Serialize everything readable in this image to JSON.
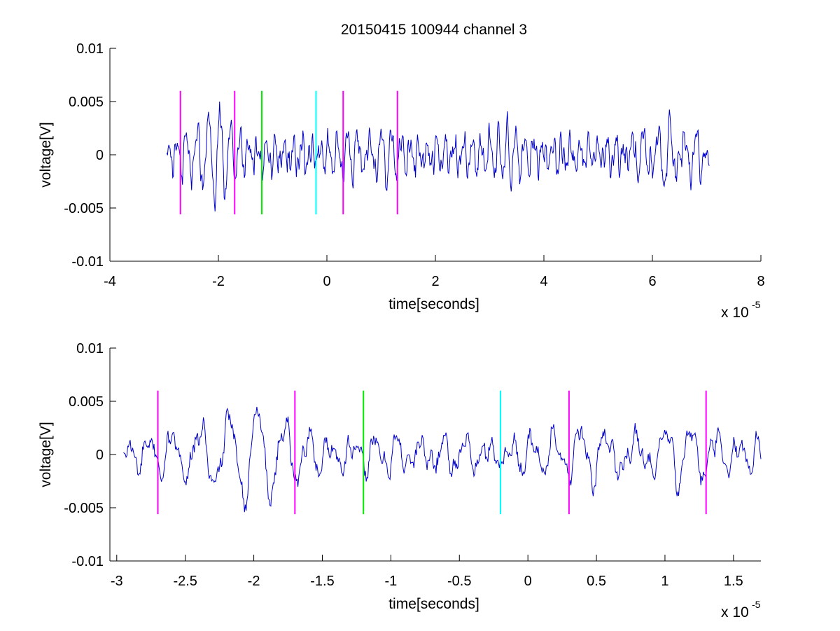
{
  "title": "20150415 100944 channel 3",
  "colors": {
    "signal": "#0000cc",
    "magenta": "#ff00ff",
    "green": "#00ee00",
    "cyan": "#00ffff",
    "axis": "#000000",
    "background": "#ffffff"
  },
  "chart_data": [
    {
      "type": "line",
      "title": "20150415 100944 channel 3",
      "xlabel": "time[seconds]",
      "ylabel": "voltage[V]",
      "x_exponent_label": "x 10",
      "x_exponent": "-5",
      "xlim": [
        -4,
        8
      ],
      "ylim": [
        -0.01,
        0.01
      ],
      "x_scale": "1e-5",
      "grid": false,
      "xticks": [
        "-4",
        "-2",
        "0",
        "2",
        "4",
        "6",
        "8"
      ],
      "xtick_values": [
        -4,
        -2,
        0,
        2,
        4,
        6,
        8
      ],
      "yticks": [
        "0.01",
        "0.005",
        "0",
        "-0.005",
        "-0.01"
      ],
      "ytick_values": [
        0.01,
        0.005,
        0,
        -0.005,
        -0.01
      ],
      "series": [
        {
          "kind": "signal",
          "color": "#0000cc",
          "x_range": [
            -2.95,
            7.05
          ],
          "ylim_marker": [
            -0.0056,
            0.006
          ]
        }
      ],
      "markers": [
        {
          "x": -2.7,
          "color": "#ff00ff",
          "y0": -0.0056,
          "y1": 0.006
        },
        {
          "x": -1.7,
          "color": "#ff00ff",
          "y0": -0.0056,
          "y1": 0.006
        },
        {
          "x": -1.2,
          "color": "#00ee00",
          "y0": -0.0056,
          "y1": 0.006
        },
        {
          "x": -0.2,
          "color": "#00ffff",
          "y0": -0.0056,
          "y1": 0.006
        },
        {
          "x": 0.3,
          "color": "#ff00ff",
          "y0": -0.0056,
          "y1": 0.006
        },
        {
          "x": 1.3,
          "color": "#ff00ff",
          "y0": -0.0056,
          "y1": 0.006
        }
      ]
    },
    {
      "type": "line",
      "xlabel": "time[seconds]",
      "ylabel": "voltage[V]",
      "x_exponent_label": "x 10",
      "x_exponent": "-5",
      "xlim": [
        -3.05,
        1.7
      ],
      "ylim": [
        -0.01,
        0.01
      ],
      "x_scale": "1e-5",
      "grid": false,
      "xticks": [
        "-3",
        "-2.5",
        "-2",
        "-1.5",
        "-1",
        "-0.5",
        "0",
        "0.5",
        "1",
        "1.5"
      ],
      "xtick_values": [
        -3,
        -2.5,
        -2,
        -1.5,
        -1,
        -0.5,
        0,
        0.5,
        1,
        1.5
      ],
      "yticks": [
        "0.01",
        "0.005",
        "0",
        "-0.005",
        "-0.01"
      ],
      "ytick_values": [
        0.01,
        0.005,
        0,
        -0.005,
        -0.01
      ],
      "series": [
        {
          "kind": "signal",
          "color": "#0000cc",
          "x_range": [
            -2.95,
            1.7
          ]
        }
      ],
      "markers": [
        {
          "x": -2.7,
          "color": "#ff00ff",
          "y0": -0.0056,
          "y1": 0.006
        },
        {
          "x": -1.7,
          "color": "#ff00ff",
          "y0": -0.0056,
          "y1": 0.006
        },
        {
          "x": -1.2,
          "color": "#00ee00",
          "y0": -0.0056,
          "y1": 0.006
        },
        {
          "x": -0.2,
          "color": "#00ffff",
          "y0": -0.0056,
          "y1": 0.006
        },
        {
          "x": 0.3,
          "color": "#ff00ff",
          "y0": -0.0056,
          "y1": 0.006
        },
        {
          "x": 1.3,
          "color": "#ff00ff",
          "y0": -0.0056,
          "y1": 0.006
        }
      ]
    }
  ]
}
